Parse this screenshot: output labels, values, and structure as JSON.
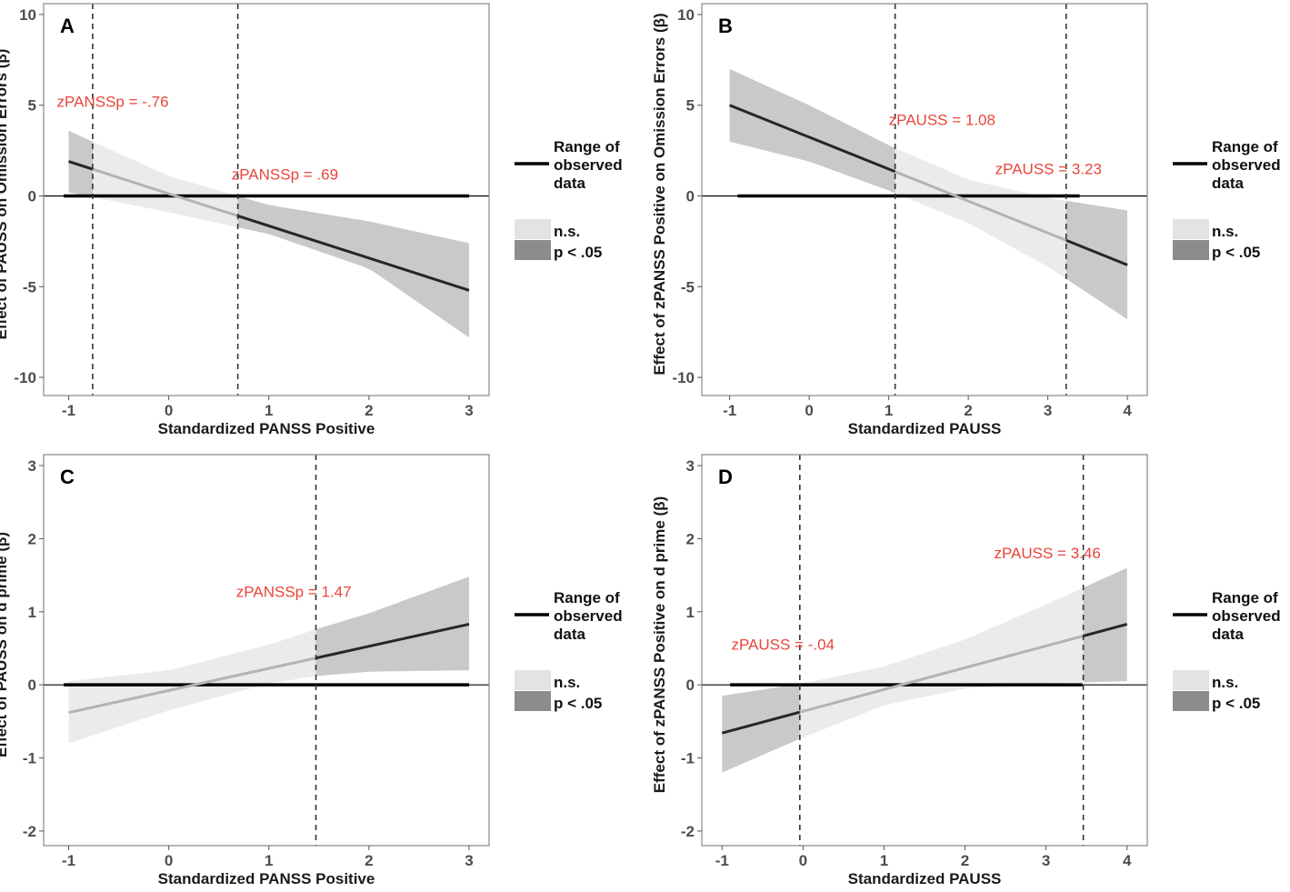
{
  "chart_data": [
    {
      "type": "line",
      "panel_label": "A",
      "xlabel": "Standardized PANSS Positive",
      "ylabel": "Effect of PAUSS on Omission Errors (β)",
      "xlim": [
        -1.25,
        3.2
      ],
      "ylim": [
        -11.0,
        10.6
      ],
      "xticks": [
        -1,
        0,
        1,
        2,
        3
      ],
      "yticks": [
        -10,
        -5,
        0,
        5,
        10
      ],
      "xtick_labels": [
        "-1",
        "0",
        "1",
        "2",
        "3"
      ],
      "ytick_labels": [
        "-10",
        "-5",
        "0",
        "5",
        "10"
      ],
      "line": {
        "x0": -1,
        "y0": 1.9,
        "x1": 3,
        "y1": -5.2
      },
      "band_x": [
        -1,
        0,
        1,
        2,
        3
      ],
      "band_lower": [
        0.2,
        -0.9,
        -2.1,
        -4.0,
        -7.8
      ],
      "band_upper": [
        3.6,
        1.1,
        -0.5,
        -1.4,
        -2.6
      ],
      "observed_range": [
        -1.05,
        3.0
      ],
      "jn_points": [
        -0.76,
        0.69
      ],
      "significant": [
        "below_first",
        "above_second"
      ],
      "annotations": [
        {
          "text": "zPANSSp = -.76",
          "x": -0.8,
          "y": 4.9
        },
        {
          "text": "zPANSSp = .69",
          "x": 0.9,
          "y": 0.9
        }
      ]
    },
    {
      "type": "line",
      "panel_label": "B",
      "xlabel": "Standardized PAUSS",
      "ylabel": "Effect of zPANSS Positive on Omission Errors (β)",
      "xlim": [
        -1.35,
        4.25
      ],
      "ylim": [
        -11.0,
        10.6
      ],
      "xticks": [
        -1,
        0,
        1,
        2,
        3,
        4
      ],
      "yticks": [
        -10,
        -5,
        0,
        5,
        10
      ],
      "xtick_labels": [
        "-1",
        "0",
        "1",
        "2",
        "3",
        "4"
      ],
      "ytick_labels": [
        "-10",
        "-5",
        "0",
        "5",
        "10"
      ],
      "line": {
        "x0": -1,
        "y0": 5.0,
        "x1": 4,
        "y1": -3.8
      },
      "band_x": [
        -1,
        0,
        1,
        2,
        3,
        4
      ],
      "band_lower": [
        3.0,
        1.9,
        0.3,
        -1.5,
        -3.9,
        -6.8
      ],
      "band_upper": [
        7.0,
        5.0,
        2.8,
        0.9,
        -0.1,
        -0.8
      ],
      "observed_range": [
        -0.9,
        3.4
      ],
      "jn_points": [
        1.08,
        3.23
      ],
      "significant": [
        "below_first",
        "above_second"
      ],
      "annotations": [
        {
          "text": "zPAUSS = 1.08",
          "x": 1.4,
          "y": 3.9
        },
        {
          "text": "zPAUSS = 3.23",
          "x": 3.0,
          "y": 1.2
        }
      ]
    },
    {
      "type": "line",
      "panel_label": "C",
      "xlabel": "Standardized PANSS Positive",
      "ylabel": "Effect of PAUSS on d prime (β)",
      "xlim": [
        -1.25,
        3.2
      ],
      "ylim": [
        -2.2,
        3.15
      ],
      "xticks": [
        -1,
        0,
        1,
        2,
        3
      ],
      "yticks": [
        -2,
        -1,
        0,
        1,
        2,
        3
      ],
      "xtick_labels": [
        "-1",
        "0",
        "1",
        "2",
        "3"
      ],
      "ytick_labels": [
        "-2",
        "-1",
        "0",
        "1",
        "2",
        "3"
      ],
      "line": {
        "x0": -1,
        "y0": -0.38,
        "x1": 3,
        "y1": 0.83
      },
      "band_x": [
        -1,
        0,
        1,
        1.47,
        2,
        3
      ],
      "band_lower": [
        -0.8,
        -0.35,
        0.02,
        0.12,
        0.18,
        0.2
      ],
      "band_upper": [
        0.05,
        0.2,
        0.55,
        0.76,
        0.98,
        1.48
      ],
      "observed_range": [
        -1.05,
        3.0
      ],
      "jn_points": [
        1.47
      ],
      "significant": [
        "above_first"
      ],
      "annotations": [
        {
          "text": "zPANSSp = 1.47",
          "x": 1.4,
          "y": 1.2
        }
      ]
    },
    {
      "type": "line",
      "panel_label": "D",
      "xlabel": "Standardized PAUSS",
      "ylabel": "Effect of zPANSS Positive on d prime (β)",
      "xlim": [
        -1.25,
        4.25
      ],
      "ylim": [
        -2.2,
        3.15
      ],
      "xticks": [
        -1,
        0,
        1,
        2,
        3,
        4
      ],
      "yticks": [
        -2,
        -1,
        0,
        1,
        2,
        3
      ],
      "xtick_labels": [
        "-1",
        "0",
        "1",
        "2",
        "3",
        "4"
      ],
      "ytick_labels": [
        "-2",
        "-1",
        "0",
        "1",
        "2",
        "3"
      ],
      "line": {
        "x0": -1,
        "y0": -0.66,
        "x1": 4,
        "y1": 0.83
      },
      "band_x": [
        -1,
        0,
        1,
        2,
        3,
        4
      ],
      "band_lower": [
        -1.2,
        -0.72,
        -0.28,
        -0.05,
        0.02,
        0.05
      ],
      "band_upper": [
        -0.15,
        0.02,
        0.25,
        0.62,
        1.1,
        1.6
      ],
      "observed_range": [
        -0.9,
        3.45
      ],
      "jn_points": [
        -0.04,
        3.46
      ],
      "significant": [
        "below_first",
        "above_second"
      ],
      "annotations": [
        {
          "text": "zPAUSS = -.04",
          "x": -0.1,
          "y": 0.48
        },
        {
          "text": "zPAUSS = 3.46",
          "x": 3.2,
          "y": 1.73
        }
      ]
    }
  ],
  "legend": {
    "range_line_label": [
      "Range of",
      "observed",
      "data"
    ],
    "ns_label": "n.s.",
    "sig_label": "p < .05"
  },
  "colors": {
    "ns_band": "#ebebeb",
    "sig_band": "#c9c9c9",
    "ns_line": "#b3b3b3",
    "sig_line": "#262626",
    "range_line": "#000000",
    "annotation": "#e8453a",
    "legend_ns": "#e3e3e3",
    "legend_sig": "#8c8c8c"
  }
}
